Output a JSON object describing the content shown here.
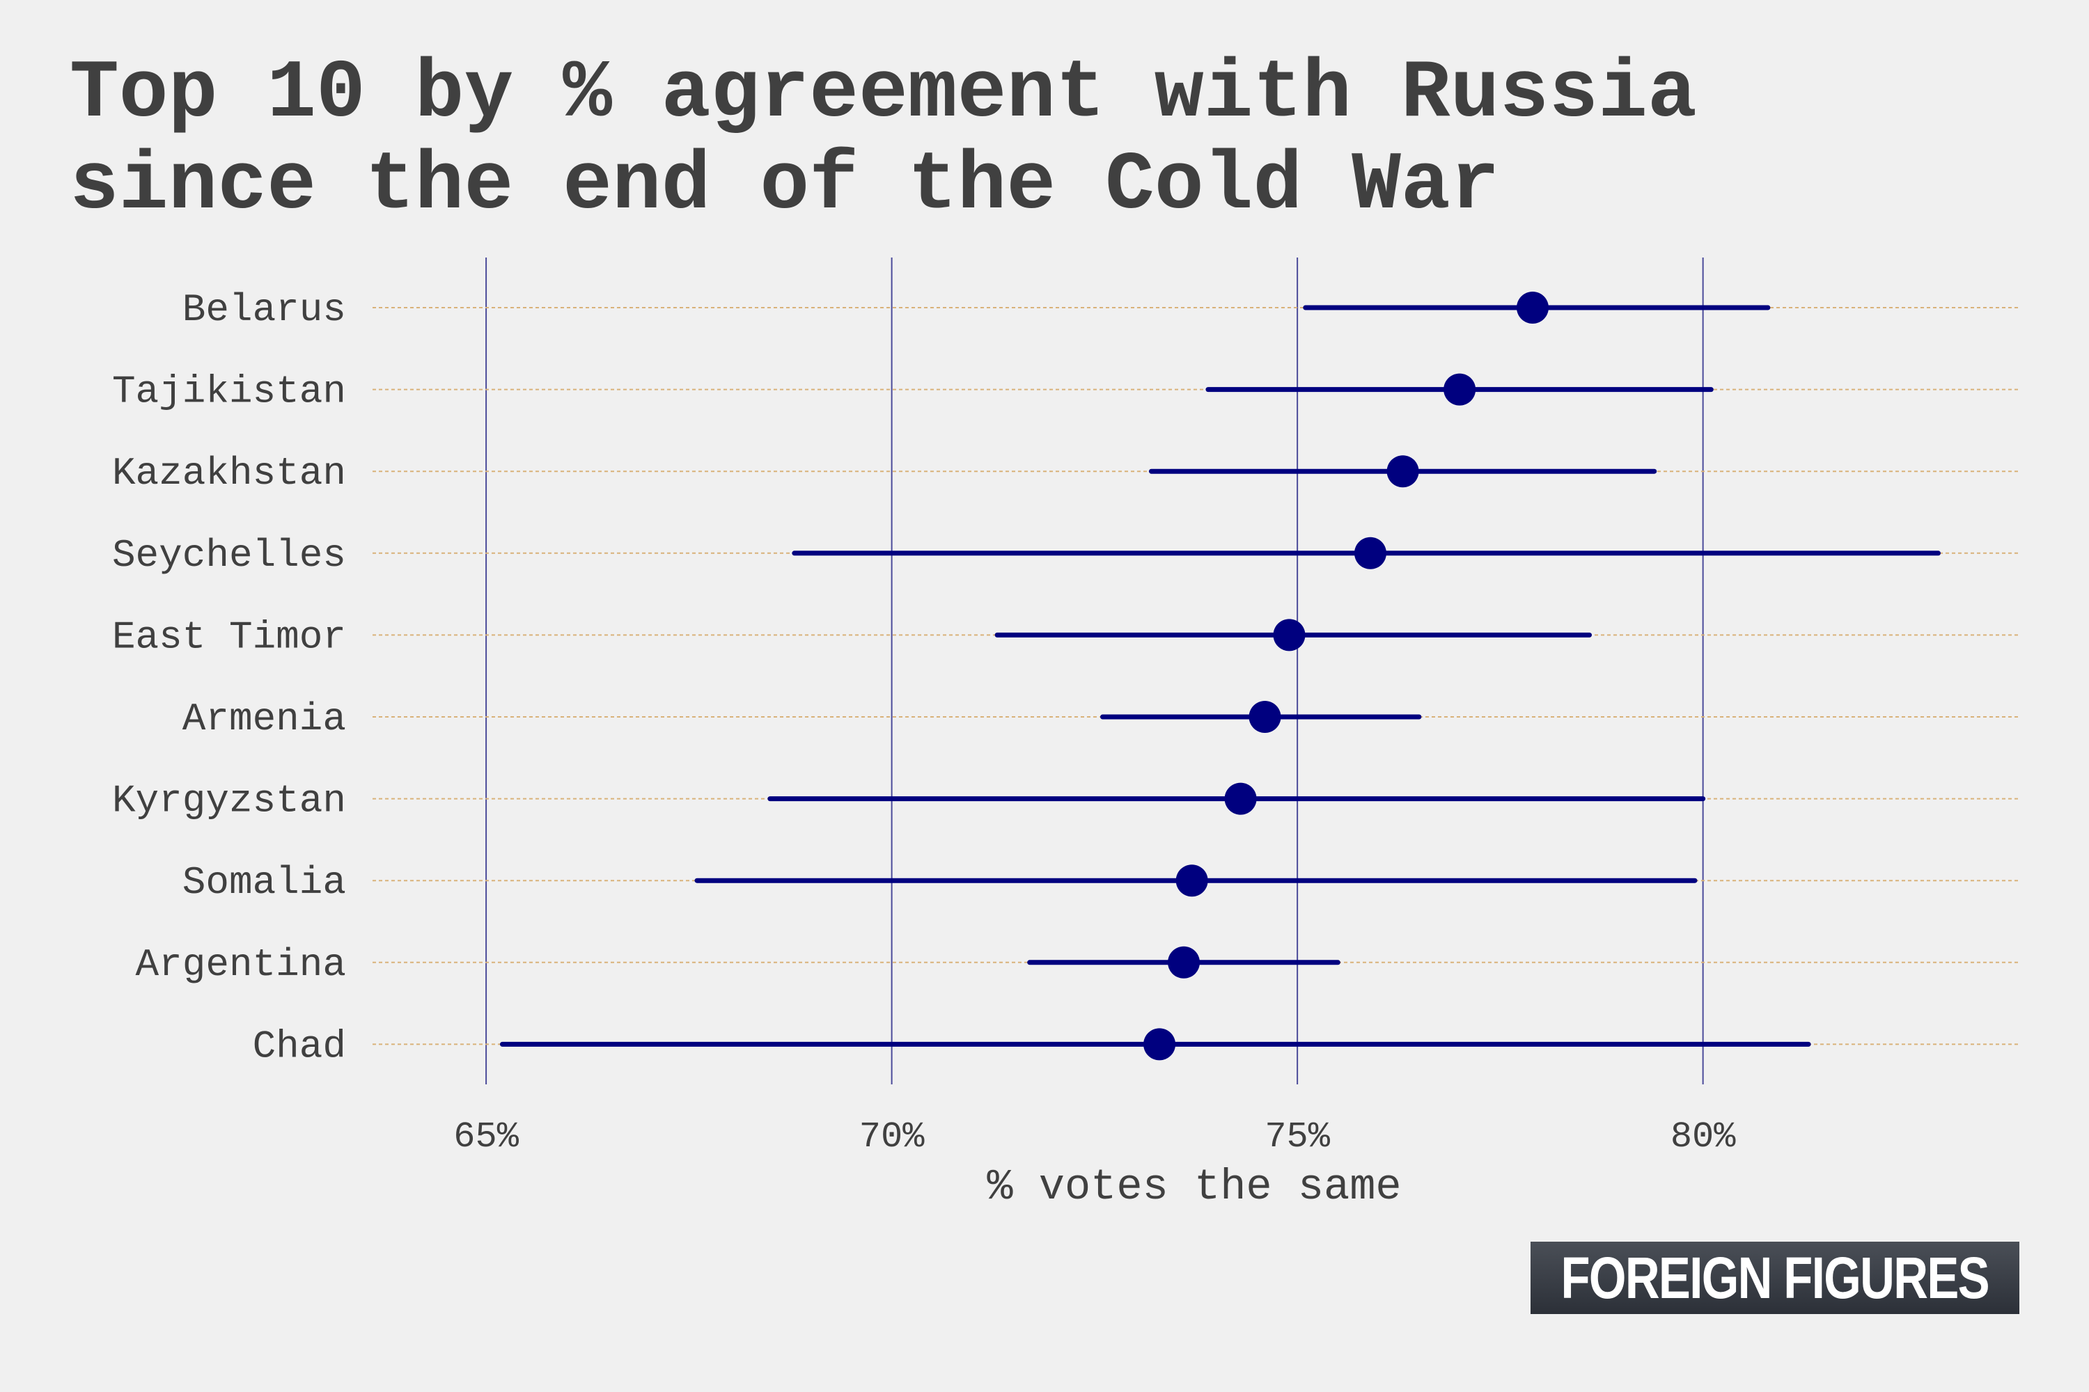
{
  "chart_data": {
    "type": "dot-interval",
    "title_lines": [
      "Top 10 by % agreement with Russia",
      "since the end of the Cold War"
    ],
    "xlabel": "% votes the same",
    "xlim": [
      63.6,
      83.9
    ],
    "x_ticks": [
      65,
      70,
      75,
      80
    ],
    "x_tick_labels": [
      "65%",
      "70%",
      "75%",
      "80%"
    ],
    "grid": true,
    "series": [
      {
        "values": [
          77.9,
          77.0,
          76.3,
          75.9,
          74.9,
          74.6,
          74.3,
          73.7,
          73.6,
          73.3
        ],
        "low": [
          75.1,
          73.9,
          73.2,
          68.8,
          71.3,
          72.6,
          68.5,
          67.6,
          71.7,
          65.2
        ],
        "high": [
          80.8,
          80.1,
          79.4,
          82.9,
          78.6,
          76.5,
          80.0,
          79.9,
          75.5,
          81.3
        ]
      }
    ],
    "categories": [
      "Belarus",
      "Tajikistan",
      "Kazakhstan",
      "Seychelles",
      "East Timor",
      "Armenia",
      "Kyrgyzstan",
      "Somalia",
      "Argentina",
      "Chad"
    ],
    "colors": {
      "points": "#00007f",
      "interval": "#00007f",
      "vertical_grid": "#4b4b9a",
      "row_guides": "#d9b27a",
      "text": "#404040"
    }
  },
  "brand": {
    "logo_text": "FOREIGN FIGURES"
  }
}
